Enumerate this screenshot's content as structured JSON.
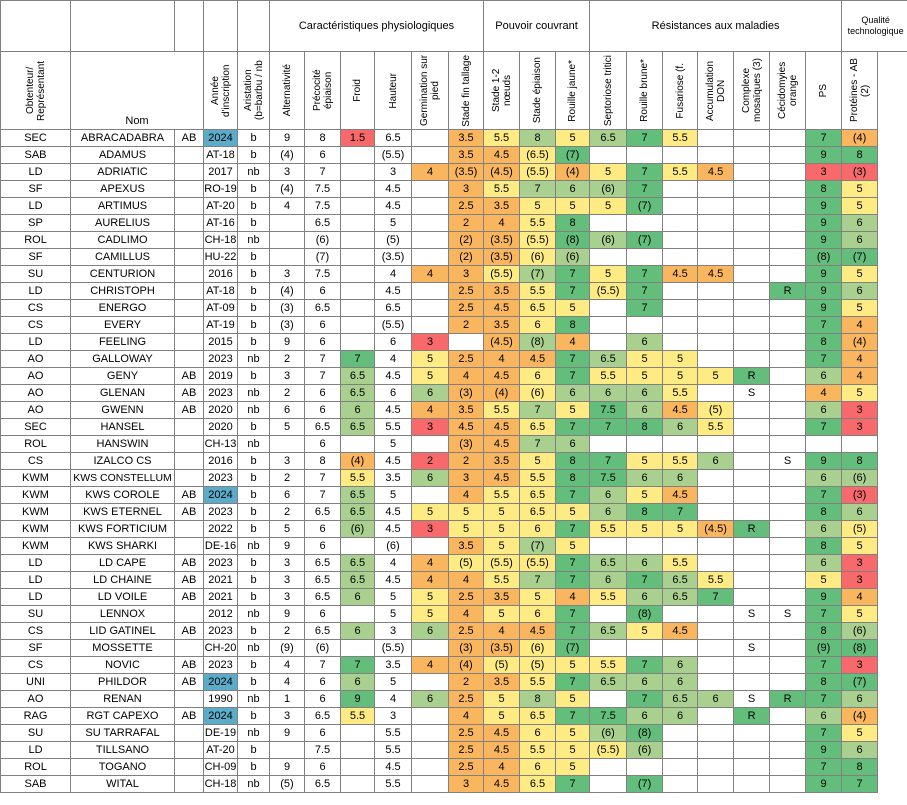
{
  "header": {
    "groups": {
      "physio": "Caractéristiques physiologiques",
      "pouvoir": "Pouvoir couvrant",
      "resist": "Résistances aux maladies",
      "qualite": "Qualité technologique"
    },
    "columns": {
      "obtenteur": "Obtenteur/ Représentant",
      "nom": "Nom",
      "annee": "Année d'inscription",
      "aristation": "Aristation (b=barbu / nb",
      "alternativite": "Alternativité",
      "precocite": "Précocité épiaison",
      "froid": "Froid",
      "hauteur": "Hauteur",
      "germination": "Germination sur pied",
      "stade_fin": "Stade fin tallage",
      "stade_12": "Stade 1-2 nœuds",
      "stade_epi": "Stade épiaison",
      "rouille_jaune": "Rouille jaune*",
      "septoriose": "Septoriose tritici",
      "rouille_brune": "Rouille brune*",
      "fusariose": "Fusariose (f.",
      "accumulation": "Accumulation DON",
      "complexe": "Complexe mosaïques (3)",
      "cecidomyies": "Cécidomyies orange",
      "ps": "PS",
      "proteines": "Protéines - AB (2)"
    }
  },
  "colors": {
    "green": "#63be7b",
    "light_green": "#a9d08e",
    "yellow": "#ffeb84",
    "orange": "#f9b65f",
    "red": "#f8696b",
    "blue": "#5bacc9"
  },
  "rows": [
    {
      "obt": "SEC",
      "nom": "ABRACADABRA",
      "ab": "AB",
      "annee": "2024",
      "arist": "b",
      "alt": "9",
      "prec": "8",
      "froid": "1.5",
      "haut": "6.5",
      "germ": "",
      "fin": "3.5",
      "n12": "5.5",
      "epi": "8",
      "rj": "5",
      "sept": "6.5",
      "rb": "7",
      "fus": "5.5",
      "don": "",
      "mos": "",
      "cec": "",
      "ps": "7",
      "prot": "(4)"
    },
    {
      "obt": "SAB",
      "nom": "ADAMUS",
      "ab": "",
      "annee": "AT-18",
      "arist": "b",
      "alt": "(4)",
      "prec": "6",
      "froid": "",
      "haut": "(5.5)",
      "germ": "",
      "fin": "3.5",
      "n12": "4.5",
      "epi": "(6.5)",
      "rj": "(7)",
      "sept": "",
      "rb": "",
      "fus": "",
      "don": "",
      "mos": "",
      "cec": "",
      "ps": "9",
      "prot": "8"
    },
    {
      "obt": "LD",
      "nom": "ADRIATIC",
      "ab": "",
      "annee": "2017",
      "arist": "nb",
      "alt": "3",
      "prec": "7",
      "froid": "",
      "haut": "3",
      "germ": "4",
      "fin": "(3.5)",
      "n12": "(4.5)",
      "epi": "(5.5)",
      "rj": "(4)",
      "sept": "5",
      "rb": "7",
      "fus": "5.5",
      "don": "4.5",
      "mos": "",
      "cec": "",
      "ps": "3",
      "prot": "(3)"
    },
    {
      "obt": "SF",
      "nom": "APEXUS",
      "ab": "",
      "annee": "RO-19",
      "arist": "b",
      "alt": "(4)",
      "prec": "7.5",
      "froid": "",
      "haut": "4.5",
      "germ": "",
      "fin": "3",
      "n12": "5.5",
      "epi": "7",
      "rj": "6",
      "sept": "(6)",
      "rb": "7",
      "fus": "",
      "don": "",
      "mos": "",
      "cec": "",
      "ps": "8",
      "prot": "5"
    },
    {
      "obt": "LD",
      "nom": "ARTIMUS",
      "ab": "",
      "annee": "AT-20",
      "arist": "b",
      "alt": "4",
      "prec": "7.5",
      "froid": "",
      "haut": "4.5",
      "germ": "",
      "fin": "2.5",
      "n12": "3.5",
      "epi": "5",
      "rj": "5",
      "sept": "5",
      "rb": "(7)",
      "fus": "",
      "don": "",
      "mos": "",
      "cec": "",
      "ps": "9",
      "prot": "5"
    },
    {
      "obt": "SP",
      "nom": "AURELIUS",
      "ab": "",
      "annee": "AT-16",
      "arist": "b",
      "alt": "",
      "prec": "6.5",
      "froid": "",
      "haut": "5",
      "germ": "",
      "fin": "2",
      "n12": "4",
      "epi": "5.5",
      "rj": "8",
      "sept": "",
      "rb": "",
      "fus": "",
      "don": "",
      "mos": "",
      "cec": "",
      "ps": "9",
      "prot": "6"
    },
    {
      "obt": "ROL",
      "nom": "CADLIMO",
      "ab": "",
      "annee": "CH-18",
      "arist": "nb",
      "alt": "",
      "prec": "(6)",
      "froid": "",
      "haut": "(5)",
      "germ": "",
      "fin": "(2)",
      "n12": "(3.5)",
      "epi": "(5.5)",
      "rj": "(8)",
      "sept": "(6)",
      "rb": "(7)",
      "fus": "",
      "don": "",
      "mos": "",
      "cec": "",
      "ps": "9",
      "prot": "6"
    },
    {
      "obt": "SF",
      "nom": "CAMILLUS",
      "ab": "",
      "annee": "HU-22",
      "arist": "b",
      "alt": "",
      "prec": "(7)",
      "froid": "",
      "haut": "(3.5)",
      "germ": "",
      "fin": "(2)",
      "n12": "(3.5)",
      "epi": "(6)",
      "rj": "(6)",
      "sept": "",
      "rb": "",
      "fus": "",
      "don": "",
      "mos": "",
      "cec": "",
      "ps": "(8)",
      "prot": "(7)"
    },
    {
      "obt": "SU",
      "nom": "CENTURION",
      "ab": "",
      "annee": "2016",
      "arist": "b",
      "alt": "3",
      "prec": "7.5",
      "froid": "",
      "haut": "4",
      "germ": "4",
      "fin": "3",
      "n12": "(5.5)",
      "epi": "(7)",
      "rj": "7",
      "sept": "5",
      "rb": "7",
      "fus": "4.5",
      "don": "4.5",
      "mos": "",
      "cec": "",
      "ps": "9",
      "prot": "5"
    },
    {
      "obt": "LD",
      "nom": "CHRISTOPH",
      "ab": "",
      "annee": "AT-18",
      "arist": "b",
      "alt": "(4)",
      "prec": "6",
      "froid": "",
      "haut": "4.5",
      "germ": "",
      "fin": "2.5",
      "n12": "3.5",
      "epi": "5.5",
      "rj": "7",
      "sept": "(5.5)",
      "rb": "7",
      "fus": "",
      "don": "",
      "mos": "",
      "cec": "R",
      "ps": "9",
      "prot": "6"
    },
    {
      "obt": "CS",
      "nom": "ENERGO",
      "ab": "",
      "annee": "AT-09",
      "arist": "b",
      "alt": "(3)",
      "prec": "6.5",
      "froid": "",
      "haut": "6.5",
      "germ": "",
      "fin": "2.5",
      "n12": "4.5",
      "epi": "6.5",
      "rj": "5",
      "sept": "",
      "rb": "7",
      "fus": "",
      "don": "",
      "mos": "",
      "cec": "",
      "ps": "9",
      "prot": "5"
    },
    {
      "obt": "CS",
      "nom": "EVERY",
      "ab": "",
      "annee": "AT-19",
      "arist": "b",
      "alt": "(3)",
      "prec": "6",
      "froid": "",
      "haut": "(5.5)",
      "germ": "",
      "fin": "2",
      "n12": "3.5",
      "epi": "6",
      "rj": "8",
      "sept": "",
      "rb": "",
      "fus": "",
      "don": "",
      "mos": "",
      "cec": "",
      "ps": "7",
      "prot": "4"
    },
    {
      "obt": "LD",
      "nom": "FEELING",
      "ab": "",
      "annee": "2015",
      "arist": "b",
      "alt": "9",
      "prec": "6",
      "froid": "",
      "haut": "6",
      "germ": "3",
      "fin": "",
      "n12": "(4.5)",
      "epi": "(8)",
      "rj": "4",
      "sept": "",
      "rb": "6",
      "fus": "",
      "don": "",
      "mos": "",
      "cec": "",
      "ps": "8",
      "prot": "(4)"
    },
    {
      "obt": "AO",
      "nom": "GALLOWAY",
      "ab": "",
      "annee": "2023",
      "arist": "nb",
      "alt": "2",
      "prec": "7",
      "froid": "7",
      "haut": "4",
      "germ": "5",
      "fin": "2.5",
      "n12": "4",
      "epi": "4.5",
      "rj": "7",
      "sept": "6.5",
      "rb": "5",
      "fus": "5",
      "don": "",
      "mos": "",
      "cec": "",
      "ps": "7",
      "prot": "4"
    },
    {
      "obt": "AO",
      "nom": "GENY",
      "ab": "AB",
      "annee": "2019",
      "arist": "b",
      "alt": "3",
      "prec": "7",
      "froid": "6.5",
      "haut": "4.5",
      "germ": "5",
      "fin": "4",
      "n12": "4.5",
      "epi": "6",
      "rj": "7",
      "sept": "5.5",
      "rb": "5",
      "fus": "5",
      "don": "5",
      "mos": "R",
      "cec": "",
      "ps": "6",
      "prot": "4"
    },
    {
      "obt": "AO",
      "nom": "GLENAN",
      "ab": "AB",
      "annee": "2023",
      "arist": "nb",
      "alt": "2",
      "prec": "6",
      "froid": "6.5",
      "haut": "6",
      "germ": "6",
      "fin": "(3)",
      "n12": "(4)",
      "epi": "(6)",
      "rj": "6",
      "sept": "6",
      "rb": "6",
      "fus": "5.5",
      "don": "",
      "mos": "S",
      "cec": "",
      "ps": "4",
      "prot": "5"
    },
    {
      "obt": "AO",
      "nom": "GWENN",
      "ab": "AB",
      "annee": "2020",
      "arist": "nb",
      "alt": "6",
      "prec": "6",
      "froid": "6",
      "haut": "4.5",
      "germ": "4",
      "fin": "3.5",
      "n12": "5.5",
      "epi": "7",
      "rj": "5",
      "sept": "7.5",
      "rb": "6",
      "fus": "4.5",
      "don": "(5)",
      "mos": "",
      "cec": "",
      "ps": "6",
      "prot": "3"
    },
    {
      "obt": "SEC",
      "nom": "HANSEL",
      "ab": "",
      "annee": "2020",
      "arist": "b",
      "alt": "5",
      "prec": "6.5",
      "froid": "6.5",
      "haut": "5.5",
      "germ": "3",
      "fin": "4.5",
      "n12": "4.5",
      "epi": "6.5",
      "rj": "7",
      "sept": "7",
      "rb": "8",
      "fus": "6",
      "don": "5.5",
      "mos": "",
      "cec": "",
      "ps": "7",
      "prot": "3"
    },
    {
      "obt": "ROL",
      "nom": "HANSWIN",
      "ab": "",
      "annee": "CH-13",
      "arist": "nb",
      "alt": "",
      "prec": "6",
      "froid": "",
      "haut": "5",
      "germ": "",
      "fin": "(3)",
      "n12": "4.5",
      "epi": "7",
      "rj": "6",
      "sept": "",
      "rb": "",
      "fus": "",
      "don": "",
      "mos": "",
      "cec": "",
      "ps": "",
      "prot": ""
    },
    {
      "obt": "CS",
      "nom": "IZALCO CS",
      "ab": "",
      "annee": "2016",
      "arist": "b",
      "alt": "3",
      "prec": "8",
      "froid": "(4)",
      "haut": "4.5",
      "germ": "2",
      "fin": "2",
      "n12": "3.5",
      "epi": "5",
      "rj": "8",
      "sept": "7",
      "rb": "5",
      "fus": "5.5",
      "don": "6",
      "mos": "",
      "cec": "S",
      "ps": "9",
      "prot": "8"
    },
    {
      "obt": "KWM",
      "nom": "KWS CONSTELLUM",
      "ab": "",
      "annee": "2023",
      "arist": "b",
      "alt": "2",
      "prec": "7",
      "froid": "5.5",
      "haut": "3.5",
      "germ": "6",
      "fin": "3",
      "n12": "4.5",
      "epi": "5.5",
      "rj": "8",
      "sept": "7.5",
      "rb": "6",
      "fus": "6",
      "don": "",
      "mos": "",
      "cec": "",
      "ps": "6",
      "prot": "(6)"
    },
    {
      "obt": "KWM",
      "nom": "KWS COROLE",
      "ab": "AB",
      "annee": "2024",
      "arist": "b",
      "alt": "6",
      "prec": "7",
      "froid": "6.5",
      "haut": "5",
      "germ": "",
      "fin": "4",
      "n12": "5.5",
      "epi": "6.5",
      "rj": "7",
      "sept": "6",
      "rb": "5",
      "fus": "4.5",
      "don": "",
      "mos": "",
      "cec": "",
      "ps": "7",
      "prot": "(3)"
    },
    {
      "obt": "KWM",
      "nom": "KWS ETERNEL",
      "ab": "AB",
      "annee": "2023",
      "arist": "b",
      "alt": "2",
      "prec": "6.5",
      "froid": "6.5",
      "haut": "4.5",
      "germ": "5",
      "fin": "5",
      "n12": "5",
      "epi": "6.5",
      "rj": "5",
      "sept": "6",
      "rb": "8",
      "fus": "7",
      "don": "",
      "mos": "",
      "cec": "",
      "ps": "8",
      "prot": "6"
    },
    {
      "obt": "KWM",
      "nom": "KWS FORTICIUM",
      "ab": "",
      "annee": "2022",
      "arist": "b",
      "alt": "5",
      "prec": "6",
      "froid": "(6)",
      "haut": "4.5",
      "germ": "3",
      "fin": "5",
      "n12": "5",
      "epi": "6",
      "rj": "7",
      "sept": "5.5",
      "rb": "5",
      "fus": "5",
      "don": "(4.5)",
      "mos": "R",
      "cec": "",
      "ps": "6",
      "prot": "(5)"
    },
    {
      "obt": "KWM",
      "nom": "KWS SHARKI",
      "ab": "",
      "annee": "DE-16",
      "arist": "nb",
      "alt": "9",
      "prec": "6",
      "froid": "",
      "haut": "(6)",
      "germ": "",
      "fin": "3.5",
      "n12": "5",
      "epi": "(7)",
      "rj": "5",
      "sept": "",
      "rb": "",
      "fus": "",
      "don": "",
      "mos": "",
      "cec": "",
      "ps": "8",
      "prot": "5"
    },
    {
      "obt": "LD",
      "nom": "LD CAPE",
      "ab": "AB",
      "annee": "2023",
      "arist": "b",
      "alt": "3",
      "prec": "6.5",
      "froid": "6.5",
      "haut": "4",
      "germ": "4",
      "fin": "(5)",
      "n12": "(5.5)",
      "epi": "(5.5)",
      "rj": "7",
      "sept": "6.5",
      "rb": "6",
      "fus": "5.5",
      "don": "",
      "mos": "",
      "cec": "",
      "ps": "6",
      "prot": "3"
    },
    {
      "obt": "LD",
      "nom": "LD CHAINE",
      "ab": "AB",
      "annee": "2021",
      "arist": "b",
      "alt": "3",
      "prec": "6.5",
      "froid": "6.5",
      "haut": "4.5",
      "germ": "4",
      "fin": "4",
      "n12": "5.5",
      "epi": "7",
      "rj": "7",
      "sept": "6",
      "rb": "7",
      "fus": "6.5",
      "don": "5.5",
      "mos": "",
      "cec": "",
      "ps": "5",
      "prot": "3"
    },
    {
      "obt": "LD",
      "nom": "LD VOILE",
      "ab": "AB",
      "annee": "2021",
      "arist": "b",
      "alt": "3",
      "prec": "6.5",
      "froid": "6",
      "haut": "5",
      "germ": "5",
      "fin": "2.5",
      "n12": "3.5",
      "epi": "5",
      "rj": "4",
      "sept": "5.5",
      "rb": "6",
      "fus": "6.5",
      "don": "7",
      "mos": "",
      "cec": "",
      "ps": "9",
      "prot": "4"
    },
    {
      "obt": "SU",
      "nom": "LENNOX",
      "ab": "",
      "annee": "2012",
      "arist": "nb",
      "alt": "9",
      "prec": "6",
      "froid": "",
      "haut": "5",
      "germ": "5",
      "fin": "4",
      "n12": "5",
      "epi": "6",
      "rj": "7",
      "sept": "",
      "rb": "(8)",
      "fus": "",
      "don": "",
      "mos": "S",
      "cec": "S",
      "ps": "7",
      "prot": "5"
    },
    {
      "obt": "CS",
      "nom": "LID GATINEL",
      "ab": "AB",
      "annee": "2023",
      "arist": "b",
      "alt": "2",
      "prec": "6.5",
      "froid": "6",
      "haut": "3",
      "germ": "6",
      "fin": "2.5",
      "n12": "4",
      "epi": "4.5",
      "rj": "7",
      "sept": "6.5",
      "rb": "5",
      "fus": "4.5",
      "don": "",
      "mos": "",
      "cec": "",
      "ps": "8",
      "prot": "(6)"
    },
    {
      "obt": "SF",
      "nom": "MOSSETTE",
      "ab": "",
      "annee": "CH-20",
      "arist": "nb",
      "alt": "(9)",
      "prec": "(6)",
      "froid": "",
      "haut": "(5.5)",
      "germ": "",
      "fin": "(3)",
      "n12": "(3.5)",
      "epi": "(6)",
      "rj": "(7)",
      "sept": "",
      "rb": "",
      "fus": "",
      "don": "",
      "mos": "S",
      "cec": "",
      "ps": "(9)",
      "prot": "(8)"
    },
    {
      "obt": "CS",
      "nom": "NOVIC",
      "ab": "AB",
      "annee": "2023",
      "arist": "b",
      "alt": "4",
      "prec": "7",
      "froid": "7",
      "haut": "3.5",
      "germ": "4",
      "fin": "(4)",
      "n12": "(5)",
      "epi": "(5)",
      "rj": "5",
      "sept": "5.5",
      "rb": "7",
      "fus": "6",
      "don": "",
      "mos": "",
      "cec": "",
      "ps": "7",
      "prot": "3"
    },
    {
      "obt": "UNI",
      "nom": "PHILDOR",
      "ab": "AB",
      "annee": "2024",
      "arist": "b",
      "alt": "4",
      "prec": "6",
      "froid": "6",
      "haut": "5",
      "germ": "",
      "fin": "2",
      "n12": "3.5",
      "epi": "5.5",
      "rj": "7",
      "sept": "6.5",
      "rb": "6",
      "fus": "6",
      "don": "",
      "mos": "",
      "cec": "",
      "ps": "8",
      "prot": "(7)"
    },
    {
      "obt": "AO",
      "nom": "RENAN",
      "ab": "",
      "annee": "1990",
      "arist": "nb",
      "alt": "1",
      "prec": "6",
      "froid": "9",
      "haut": "4",
      "germ": "6",
      "fin": "2.5",
      "n12": "5",
      "epi": "8",
      "rj": "5",
      "sept": "",
      "rb": "7",
      "fus": "6.5",
      "don": "6",
      "mos": "S",
      "cec": "R",
      "ps": "7",
      "prot": "6"
    },
    {
      "obt": "RAG",
      "nom": "RGT CAPEXO",
      "ab": "AB",
      "annee": "2024",
      "arist": "b",
      "alt": "3",
      "prec": "6.5",
      "froid": "5.5",
      "haut": "3",
      "germ": "",
      "fin": "4",
      "n12": "5",
      "epi": "6.5",
      "rj": "7",
      "sept": "7.5",
      "rb": "6",
      "fus": "6",
      "don": "",
      "mos": "R",
      "cec": "",
      "ps": "6",
      "prot": "(4)"
    },
    {
      "obt": "SU",
      "nom": "SU TARRAFAL",
      "ab": "",
      "annee": "DE-19",
      "arist": "nb",
      "alt": "9",
      "prec": "6",
      "froid": "",
      "haut": "5.5",
      "germ": "",
      "fin": "2.5",
      "n12": "4.5",
      "epi": "6",
      "rj": "5",
      "sept": "(6)",
      "rb": "(8)",
      "fus": "",
      "don": "",
      "mos": "",
      "cec": "",
      "ps": "7",
      "prot": "5"
    },
    {
      "obt": "LD",
      "nom": "TILLSANO",
      "ab": "",
      "annee": "AT-20",
      "arist": "b",
      "alt": "",
      "prec": "7.5",
      "froid": "",
      "haut": "5.5",
      "germ": "",
      "fin": "2.5",
      "n12": "4.5",
      "epi": "5.5",
      "rj": "5",
      "sept": "(5.5)",
      "rb": "(6)",
      "fus": "",
      "don": "",
      "mos": "",
      "cec": "",
      "ps": "9",
      "prot": "6"
    },
    {
      "obt": "ROL",
      "nom": "TOGANO",
      "ab": "",
      "annee": "CH-09",
      "arist": "b",
      "alt": "9",
      "prec": "6",
      "froid": "",
      "haut": "4.5",
      "germ": "",
      "fin": "2.5",
      "n12": "4",
      "epi": "6",
      "rj": "5",
      "sept": "",
      "rb": "",
      "fus": "",
      "don": "",
      "mos": "",
      "cec": "",
      "ps": "7",
      "prot": "8"
    },
    {
      "obt": "SAB",
      "nom": "WITAL",
      "ab": "",
      "annee": "CH-18",
      "arist": "nb",
      "alt": "(5)",
      "prec": "6.5",
      "froid": "",
      "haut": "5.5",
      "germ": "",
      "fin": "3",
      "n12": "4.5",
      "epi": "6.5",
      "rj": "7",
      "sept": "",
      "rb": "(7)",
      "fus": "",
      "don": "",
      "mos": "",
      "cec": "",
      "ps": "9",
      "prot": "7"
    }
  ]
}
